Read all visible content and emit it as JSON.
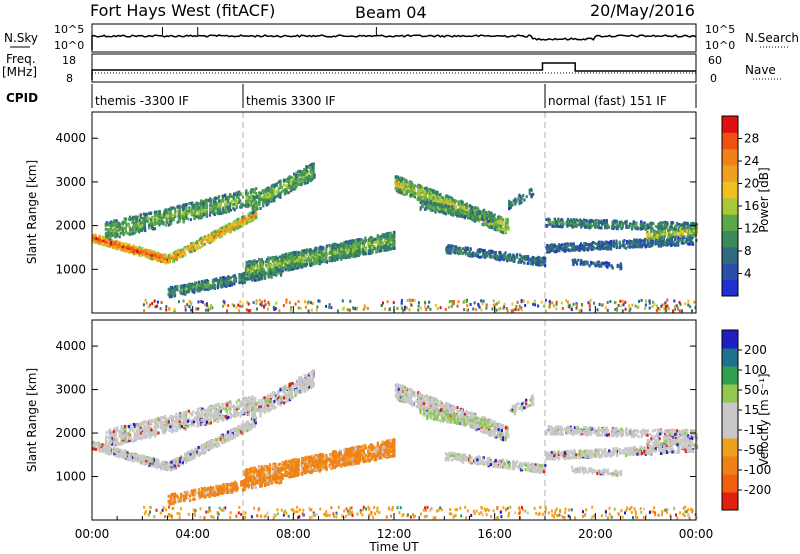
{
  "header": {
    "station": "Fort Hays West (fitACF)",
    "beam": "Beam 04",
    "date": "20/May/2016"
  },
  "strip_labels": {
    "nsky": "N.Sky",
    "nsearch": "N.Search",
    "freq_line1": "Freq.",
    "freq_line2": "[MHz]",
    "nave": "Nave",
    "cpid": "CPID",
    "noise_top": "10^5",
    "noise_bottom": "10^0",
    "noise_top_right": "10^5",
    "noise_bottom_right": "10^0",
    "freq_top": "18",
    "freq_bottom": "8",
    "nave_top": "60",
    "nave_bottom": "0"
  },
  "cpid_segments": [
    {
      "label": "themis -3300 IF",
      "start_hour": 0
    },
    {
      "label": "themis 3300 IF",
      "start_hour": 6
    },
    {
      "label": "normal (fast) 151 IF",
      "start_hour": 18
    }
  ],
  "colors": {
    "power_scale": [
      "#2030d0",
      "#2a4fa8",
      "#2e6a80",
      "#3a8a5a",
      "#5aa84a",
      "#a8c838",
      "#f0c020",
      "#f0a020",
      "#f08018",
      "#f05010",
      "#e01010"
    ],
    "velocity_scale": [
      "#2020c0",
      "#207090",
      "#30a050",
      "#90c850",
      "#c8c8c8",
      "#c8c8c8",
      "#f0a020",
      "#f08018",
      "#f06010",
      "#e02010"
    ]
  },
  "chart_data": [
    {
      "type": "heatmap",
      "panel": "power",
      "xlabel": "",
      "ylabel": "Slant Range [km]",
      "xlim": [
        0,
        24
      ],
      "ylim": [
        0,
        4600
      ],
      "yticks": [
        "1000",
        "2000",
        "3000",
        "4000"
      ],
      "colorbar_label": "Power [dB]",
      "colorbar_ticks": [
        "4",
        "8",
        "12",
        "16",
        "20",
        "24",
        "28"
      ],
      "colorbar_range": [
        0,
        31
      ]
    },
    {
      "type": "heatmap",
      "panel": "velocity",
      "xlabel": "Time UT",
      "ylabel": "Slant Range [km]",
      "xlim": [
        0,
        24
      ],
      "ylim": [
        0,
        4600
      ],
      "yticks": [
        "1000",
        "2000",
        "3000",
        "4000"
      ],
      "xticks": [
        "00:00",
        "04:00",
        "08:00",
        "12:00",
        "16:00",
        "20:00",
        "00:00"
      ],
      "colorbar_label": "Velocity [m s⁻¹]",
      "colorbar_ticks": [
        "200",
        "100",
        "50",
        "15",
        "-15",
        "-50",
        "-100",
        "-200"
      ]
    }
  ]
}
